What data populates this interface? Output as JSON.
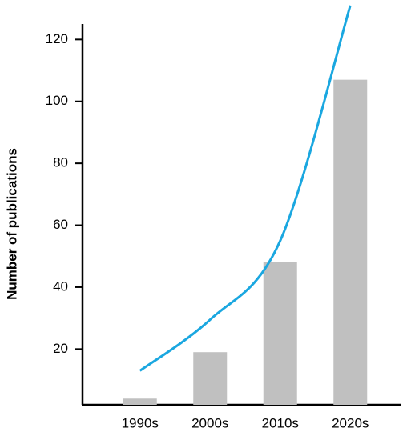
{
  "chart_data": {
    "type": "bar",
    "y_label": "Number of publications",
    "categories": [
      "1990s",
      "2000s",
      "2010s",
      "2020s"
    ],
    "series": [
      {
        "type": "bar",
        "color": "#c0c0c0",
        "values": [
          4,
          19,
          48,
          107
        ]
      },
      {
        "type": "line",
        "color": "#1aa7e0",
        "values": [
          13,
          29.5,
          55,
          131
        ]
      }
    ],
    "ylim": [
      2,
      125
    ],
    "yticks": [
      20,
      40,
      60,
      80,
      100,
      120
    ],
    "grid": false
  }
}
